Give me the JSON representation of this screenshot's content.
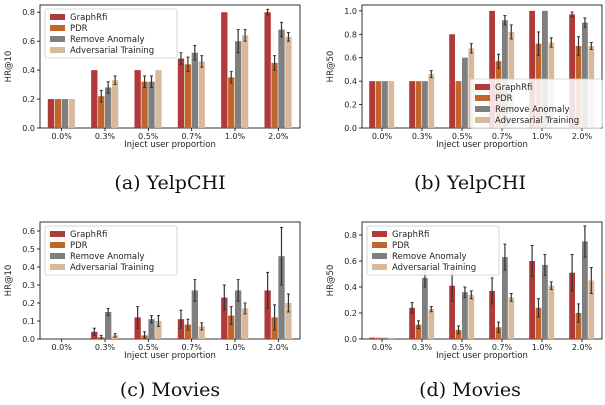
{
  "chart_data": [
    {
      "type": "bar",
      "caption": "(a) YelpCHI",
      "xlabel": "Inject user proportion",
      "ylabel": "HR@10",
      "categories": [
        "0.0%",
        "0.3%",
        "0.5%",
        "0.7%",
        "1.0%",
        "2.0%"
      ],
      "ylim": [
        0,
        0.85
      ],
      "yticks": [
        "0.0",
        "0.2",
        "0.4",
        "0.6",
        "0.8"
      ],
      "legend": "top-left",
      "series": [
        {
          "name": "GraphRfi",
          "color": "#b03a3a",
          "values": [
            0.2,
            0.4,
            0.4,
            0.48,
            0.8,
            0.8
          ],
          "errors": [
            0.0,
            0.0,
            0.0,
            0.04,
            0.0,
            0.02
          ]
        },
        {
          "name": "PDR",
          "color": "#c0662d",
          "values": [
            0.2,
            0.22,
            0.32,
            0.44,
            0.35,
            0.45
          ],
          "errors": [
            0.0,
            0.04,
            0.04,
            0.05,
            0.04,
            0.05
          ]
        },
        {
          "name": "Remove Anomaly",
          "color": "#7f7f7f",
          "values": [
            0.2,
            0.28,
            0.32,
            0.52,
            0.6,
            0.68
          ],
          "errors": [
            0.0,
            0.04,
            0.04,
            0.05,
            0.08,
            0.05
          ]
        },
        {
          "name": "Adversarial Training",
          "color": "#d9b99b",
          "values": [
            0.2,
            0.33,
            0.4,
            0.46,
            0.64,
            0.63
          ],
          "errors": [
            0.0,
            0.03,
            0.0,
            0.04,
            0.04,
            0.03
          ]
        }
      ]
    },
    {
      "type": "bar",
      "caption": "(b) YelpCHI",
      "xlabel": "Inject user proportion",
      "ylabel": "HR@50",
      "categories": [
        "0.0%",
        "0.3%",
        "0.5%",
        "0.7%",
        "1.0%",
        "2.0%"
      ],
      "ylim": [
        0,
        1.05
      ],
      "yticks": [
        "0.0",
        "0.2",
        "0.4",
        "0.6",
        "0.8",
        "1.0"
      ],
      "legend": "lower-right",
      "series": [
        {
          "name": "GraphRfi",
          "color": "#b03a3a",
          "values": [
            0.4,
            0.4,
            0.8,
            1.0,
            1.0,
            0.97
          ],
          "errors": [
            0.0,
            0.0,
            0.0,
            0.0,
            0.0,
            0.02
          ]
        },
        {
          "name": "PDR",
          "color": "#c0662d",
          "values": [
            0.4,
            0.4,
            0.4,
            0.57,
            0.72,
            0.7
          ],
          "errors": [
            0.0,
            0.0,
            0.0,
            0.06,
            0.1,
            0.08
          ]
        },
        {
          "name": "Remove Anomaly",
          "color": "#7f7f7f",
          "values": [
            0.4,
            0.4,
            0.6,
            0.92,
            1.0,
            0.9
          ],
          "errors": [
            0.0,
            0.0,
            0.0,
            0.04,
            0.0,
            0.04
          ]
        },
        {
          "name": "Adversarial Training",
          "color": "#d9b99b",
          "values": [
            0.4,
            0.46,
            0.68,
            0.82,
            0.73,
            0.7
          ],
          "errors": [
            0.0,
            0.03,
            0.04,
            0.06,
            0.04,
            0.03
          ]
        }
      ]
    },
    {
      "type": "bar",
      "caption": "(c) Movies",
      "xlabel": "Inject user proportion",
      "ylabel": "HR@10",
      "categories": [
        "0.0%",
        "0.3%",
        "0.5%",
        "0.7%",
        "1.0%",
        "2.0%"
      ],
      "ylim": [
        0,
        0.65
      ],
      "yticks": [
        "0.0",
        "0.1",
        "0.2",
        "0.3",
        "0.4",
        "0.5",
        "0.6"
      ],
      "legend": "top-left",
      "series": [
        {
          "name": "GraphRfi",
          "color": "#b03a3a",
          "values": [
            0.0,
            0.04,
            0.12,
            0.11,
            0.23,
            0.27
          ],
          "errors": [
            0.0,
            0.02,
            0.06,
            0.05,
            0.07,
            0.1
          ]
        },
        {
          "name": "PDR",
          "color": "#c0662d",
          "values": [
            0.0,
            0.01,
            0.02,
            0.08,
            0.13,
            0.12
          ],
          "errors": [
            0.0,
            0.01,
            0.02,
            0.03,
            0.05,
            0.07
          ]
        },
        {
          "name": "Remove Anomaly",
          "color": "#7f7f7f",
          "values": [
            0.0,
            0.15,
            0.11,
            0.27,
            0.27,
            0.46
          ],
          "errors": [
            0.0,
            0.02,
            0.02,
            0.06,
            0.06,
            0.16
          ]
        },
        {
          "name": "Adversarial Training",
          "color": "#d9b99b",
          "values": [
            0.0,
            0.02,
            0.1,
            0.07,
            0.17,
            0.2
          ],
          "errors": [
            0.0,
            0.01,
            0.03,
            0.02,
            0.03,
            0.05
          ]
        }
      ]
    },
    {
      "type": "bar",
      "caption": "(d) Movies",
      "xlabel": "Inject user proportion",
      "ylabel": "HR@50",
      "categories": [
        "0.0%",
        "0.3%",
        "0.5%",
        "0.7%",
        "1.0%",
        "2.0%"
      ],
      "ylim": [
        0,
        0.9
      ],
      "yticks": [
        "0.0",
        "0.2",
        "0.4",
        "0.6",
        "0.8"
      ],
      "legend": "top-left",
      "series": [
        {
          "name": "GraphRfi",
          "color": "#b03a3a",
          "values": [
            0.01,
            0.24,
            0.41,
            0.37,
            0.6,
            0.51
          ],
          "errors": [
            0.0,
            0.04,
            0.12,
            0.1,
            0.12,
            0.14
          ]
        },
        {
          "name": "PDR",
          "color": "#c0662d",
          "values": [
            0.01,
            0.11,
            0.07,
            0.09,
            0.24,
            0.2
          ],
          "errors": [
            0.0,
            0.03,
            0.03,
            0.04,
            0.07,
            0.07
          ]
        },
        {
          "name": "Remove Anomaly",
          "color": "#7f7f7f",
          "values": [
            0.01,
            0.47,
            0.36,
            0.63,
            0.57,
            0.75
          ],
          "errors": [
            0.0,
            0.07,
            0.04,
            0.1,
            0.08,
            0.12
          ]
        },
        {
          "name": "Adversarial Training",
          "color": "#d9b99b",
          "values": [
            0.01,
            0.23,
            0.34,
            0.32,
            0.41,
            0.45
          ],
          "errors": [
            0.0,
            0.02,
            0.03,
            0.03,
            0.03,
            0.1
          ]
        }
      ]
    }
  ]
}
